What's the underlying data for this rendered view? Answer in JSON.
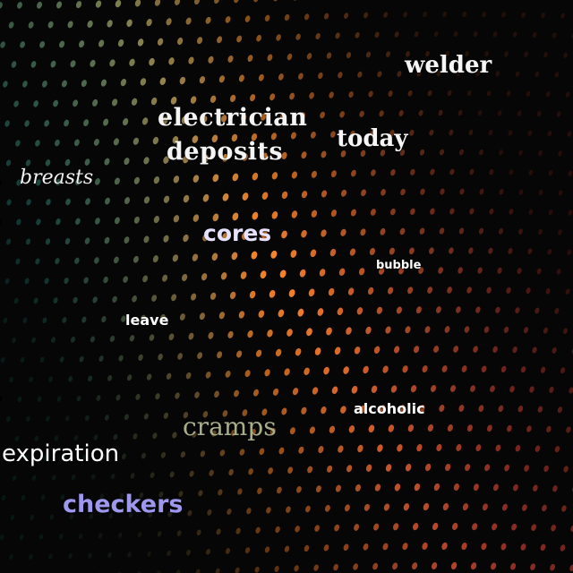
{
  "background": {
    "description_icon": "dot-mesh-background",
    "base_color": "#060606",
    "dot_colors": {
      "left": "#2a9c94",
      "center": "#ff8a2a",
      "right": "#e0483a",
      "top": "#ffb040"
    }
  },
  "words": [
    {
      "key": "welder",
      "text": "welder",
      "color": "#f5f5f5"
    },
    {
      "key": "electrician",
      "text": "electrician",
      "color": "#f4f4f4"
    },
    {
      "key": "deposits",
      "text": "deposits",
      "color": "#f4f4f4"
    },
    {
      "key": "today",
      "text": "today",
      "color": "#f6f6f6"
    },
    {
      "key": "breasts",
      "text": "breasts",
      "color": "#f2f2f2"
    },
    {
      "key": "cores",
      "text": "cores",
      "color": "#e6e2ff"
    },
    {
      "key": "bubble",
      "text": "bubble",
      "color": "#ffffff"
    },
    {
      "key": "leave",
      "text": "leave",
      "color": "#ffffff"
    },
    {
      "key": "alcoholic",
      "text": "alcoholic",
      "color": "#ffffff"
    },
    {
      "key": "cramps",
      "text": "cramps",
      "color": "#a7ae8a"
    },
    {
      "key": "expiration",
      "text": "expiration",
      "color": "#ffffff"
    },
    {
      "key": "checkers",
      "text": "checkers",
      "color": "#9d97ee"
    }
  ]
}
